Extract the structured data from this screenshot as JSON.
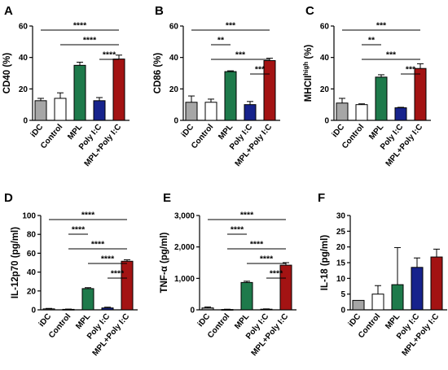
{
  "colors": {
    "iDC": "#a6a6a6",
    "Control": "#ffffff",
    "MPL": "#1e7a4b",
    "Poly I:C": "#17238c",
    "MPL+Poly I:C": "#a31313",
    "axis": "#000000"
  },
  "chart_data": [
    {
      "type": "bar",
      "panel": "A",
      "ylabel": "CD40",
      "ylabel_unit": "(%)",
      "categories": [
        "iDC",
        "Control",
        "MPL",
        "Poly I:C",
        "MPL+Poly I:C"
      ],
      "values": [
        12.5,
        14,
        35,
        12.5,
        39
      ],
      "errors": [
        1.5,
        3.5,
        2,
        2,
        2.5
      ],
      "ylim": [
        0,
        60
      ],
      "yticks": [
        0,
        20,
        40,
        60
      ],
      "ytick_labels": [
        "0",
        "20",
        "40",
        "60"
      ],
      "significance": [
        {
          "from": 0,
          "to": 4,
          "label": "****"
        },
        {
          "from": 1,
          "to": 4,
          "label": "****"
        },
        {
          "from": 3,
          "to": 4,
          "label": "****"
        }
      ]
    },
    {
      "type": "bar",
      "panel": "B",
      "ylabel": "CD86",
      "ylabel_unit": "(%)",
      "categories": [
        "iDC",
        "Control",
        "MPL",
        "Poly I:C",
        "MPL+Poly I:C"
      ],
      "values": [
        11.5,
        11.5,
        31,
        10,
        38
      ],
      "errors": [
        4,
        2,
        0.5,
        2,
        1.5
      ],
      "ylim": [
        0,
        60
      ],
      "yticks": [
        0,
        20,
        40,
        60
      ],
      "ytick_labels": [
        "0",
        "20",
        "40",
        "60"
      ],
      "significance": [
        {
          "from": 0,
          "to": 4,
          "label": "***"
        },
        {
          "from": 1,
          "to": 2,
          "label": "**"
        },
        {
          "from": 1,
          "to": 4,
          "label": "***"
        },
        {
          "from": 3,
          "to": 4,
          "label": "***"
        }
      ]
    },
    {
      "type": "bar",
      "panel": "C",
      "ylabel": "MHCII",
      "ylabel_sup": "high",
      "ylabel_unit": "(%)",
      "categories": [
        "iDC",
        "Control",
        "MPL",
        "Poly I:C",
        "MPL+Poly I:C"
      ],
      "values": [
        11,
        10,
        27.5,
        8,
        33
      ],
      "errors": [
        3,
        0.5,
        1.5,
        0.3,
        3
      ],
      "ylim": [
        0,
        60
      ],
      "yticks": [
        0,
        20,
        40,
        60
      ],
      "ytick_labels": [
        "0",
        "20",
        "40",
        "60"
      ],
      "significance": [
        {
          "from": 0,
          "to": 4,
          "label": "***"
        },
        {
          "from": 1,
          "to": 2,
          "label": "**"
        },
        {
          "from": 1,
          "to": 4,
          "label": "***"
        },
        {
          "from": 3,
          "to": 4,
          "label": "***"
        }
      ]
    },
    {
      "type": "bar",
      "panel": "D",
      "ylabel": "IL-12p70",
      "ylabel_unit": "(pg/ml)",
      "categories": [
        "iDC",
        "Control",
        "MPL",
        "Poly I:C",
        "MPL+Poly I:C"
      ],
      "values": [
        1,
        0.5,
        22.5,
        2,
        51.5
      ],
      "errors": [
        0.5,
        0.3,
        1,
        0.8,
        1.5
      ],
      "ylim": [
        0,
        100
      ],
      "yticks": [
        0,
        20,
        40,
        60,
        80,
        100
      ],
      "ytick_labels": [
        "0",
        "20",
        "40",
        "60",
        "80",
        "100"
      ],
      "significance": [
        {
          "from": 0,
          "to": 4,
          "label": "****"
        },
        {
          "from": 1,
          "to": 2,
          "label": "****"
        },
        {
          "from": 1,
          "to": 4,
          "label": "****"
        },
        {
          "from": 2,
          "to": 4,
          "label": "****"
        },
        {
          "from": 3,
          "to": 4,
          "label": "****"
        }
      ]
    },
    {
      "type": "bar",
      "panel": "E",
      "ylabel": "TNF-α",
      "ylabel_unit": "(pg/ml)",
      "categories": [
        "iDC",
        "Control",
        "MPL",
        "Poly I:C",
        "MPL+Poly I:C"
      ],
      "values": [
        60,
        10,
        870,
        20,
        1420
      ],
      "errors": [
        30,
        10,
        40,
        10,
        80
      ],
      "ylim": [
        0,
        3000
      ],
      "yticks": [
        0,
        1000,
        2000,
        3000
      ],
      "ytick_labels": [
        "0",
        "1,000",
        "2,000",
        "3,000"
      ],
      "significance": [
        {
          "from": 0,
          "to": 4,
          "label": "****"
        },
        {
          "from": 1,
          "to": 2,
          "label": "****"
        },
        {
          "from": 1,
          "to": 4,
          "label": "****"
        },
        {
          "from": 2,
          "to": 4,
          "label": "****"
        },
        {
          "from": 3,
          "to": 4,
          "label": "****"
        }
      ]
    },
    {
      "type": "bar",
      "panel": "F",
      "ylabel": "IL-18",
      "ylabel_unit": "(pg/ml)",
      "categories": [
        "iDC",
        "Control",
        "MPL",
        "Poly I:C",
        "MPL+Poly I:C"
      ],
      "values": [
        3,
        5,
        8,
        13.5,
        16.8
      ],
      "errors": [
        0,
        2.7,
        11.8,
        3,
        2.5
      ],
      "ylim": [
        0,
        30
      ],
      "yticks": [
        0,
        5,
        10,
        15,
        20,
        25,
        30
      ],
      "ytick_labels": [
        "0",
        "5",
        "10",
        "15",
        "20",
        "25",
        "30"
      ],
      "significance": []
    }
  ]
}
